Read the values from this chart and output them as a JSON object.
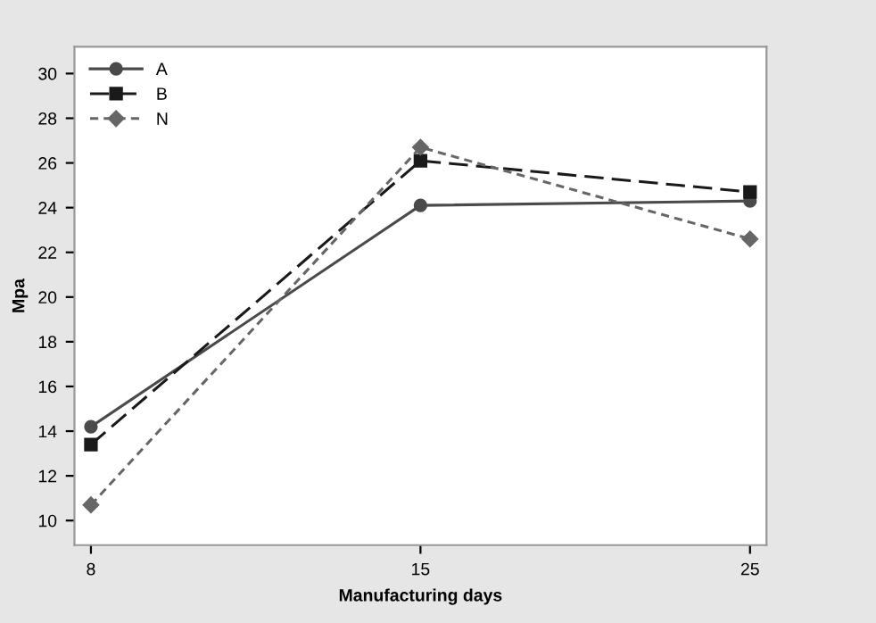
{
  "chart_data": {
    "type": "line",
    "xlabel": "Manufacturing days",
    "ylabel": "Mpa",
    "categories": [
      "8",
      "15",
      "25"
    ],
    "series": [
      {
        "name": "A",
        "color": "#4a4a4a",
        "values": [
          14.2,
          24.1,
          24.3
        ],
        "marker": "circle",
        "line_style": "solid"
      },
      {
        "name": "B",
        "color": "#1a1a1a",
        "values": [
          13.4,
          26.1,
          24.7
        ],
        "marker": "square",
        "line_style": "dashed"
      },
      {
        "name": "N",
        "color": "#666666",
        "values": [
          10.7,
          26.7,
          22.6
        ],
        "marker": "diamond",
        "line_style": "dotted"
      }
    ],
    "ylim": [
      8.9,
      31.2
    ],
    "yticks": [
      10,
      12,
      14,
      16,
      18,
      20,
      22,
      24,
      26,
      28,
      30
    ],
    "grid": false,
    "legend": "top left"
  }
}
